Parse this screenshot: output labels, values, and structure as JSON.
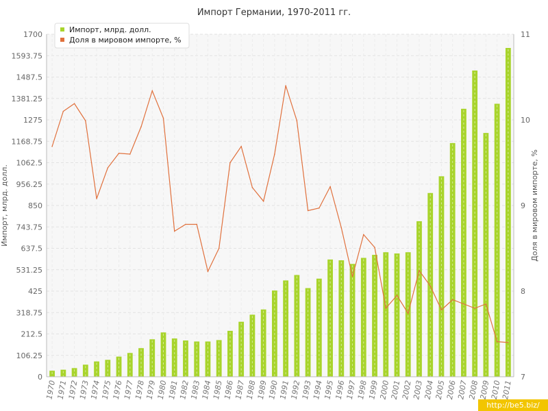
{
  "chart_data": {
    "type": "bar",
    "title": "Импорт Германии, 1970-2011 гг.",
    "ylabel": "Импорт, млрд. долл.",
    "y2label": "Доля в мировом импорте, %",
    "categories": [
      "1970",
      "1971",
      "1972",
      "1973",
      "1974",
      "1975",
      "1976",
      "1977",
      "1978",
      "1979",
      "1980",
      "1981",
      "1982",
      "1983",
      "1984",
      "1985",
      "1986",
      "1987",
      "1988",
      "1989",
      "1990",
      "1991",
      "1992",
      "1993",
      "1994",
      "1995",
      "1996",
      "1997",
      "1998",
      "1999",
      "2000",
      "2001",
      "2002",
      "2003",
      "2004",
      "2005",
      "2006",
      "2007",
      "2008",
      "2009",
      "2010",
      "2011"
    ],
    "ylim": [
      0,
      1700
    ],
    "y2lim": [
      7,
      11
    ],
    "yticks": [
      "0",
      "106.25",
      "212.5",
      "318.75",
      "425",
      "531.25",
      "637.5",
      "743.75",
      "850",
      "956.25",
      "1062.5",
      "1168.75",
      "1275",
      "1381.25",
      "1487.5",
      "1593.75",
      "1700"
    ],
    "y2ticks": [
      "7",
      "8",
      "9",
      "10",
      "11"
    ],
    "grid": true,
    "legend_position": "top-left",
    "series": [
      {
        "name": "Импорт, млрд. долл.",
        "type": "bar",
        "axis": "left",
        "color": "#a8d42c",
        "values": [
          30,
          35,
          43,
          60,
          76,
          84,
          100,
          118,
          142,
          186,
          220,
          190,
          180,
          175,
          175,
          182,
          228,
          273,
          308,
          334,
          428,
          478,
          505,
          440,
          487,
          582,
          578,
          560,
          590,
          605,
          618,
          612,
          618,
          772,
          912,
          995,
          1160,
          1330,
          1520,
          1210,
          1355,
          1632
        ]
      },
      {
        "name": "Доля в мировом импорте, %",
        "type": "line",
        "axis": "right",
        "color": "#e0703c",
        "values": [
          9.69,
          10.1,
          10.19,
          9.99,
          9.08,
          9.44,
          9.61,
          9.6,
          9.92,
          10.34,
          10.02,
          8.7,
          8.78,
          8.78,
          8.23,
          8.5,
          9.5,
          9.69,
          9.21,
          9.05,
          9.6,
          10.4,
          9.99,
          8.94,
          8.97,
          9.22,
          8.74,
          8.17,
          8.66,
          8.51,
          7.8,
          7.95,
          7.74,
          8.24,
          8.06,
          7.78,
          7.9,
          7.85,
          7.8,
          7.85,
          7.41,
          7.4
        ]
      }
    ]
  },
  "watermark": "http://be5.biz/"
}
